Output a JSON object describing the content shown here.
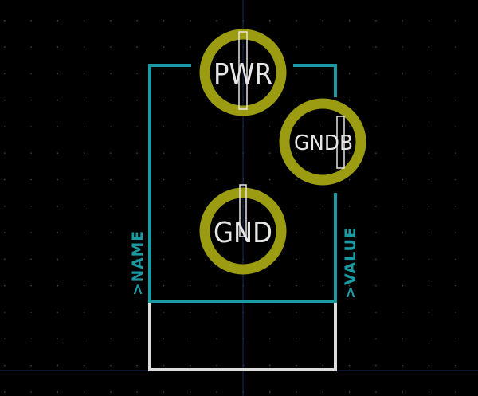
{
  "footprint": {
    "pads": [
      {
        "name": "PWR"
      },
      {
        "name": "GNDB"
      },
      {
        "name": "GND"
      }
    ],
    "name_field": ">NAME",
    "value_field": ">VALUE"
  },
  "colors": {
    "background": "#000000",
    "grid_dot": "#4a4a4a",
    "crosshair": "#1f2a5c",
    "silkscreen": "#1a9ba3",
    "pad_ring": "#9c9c12",
    "fab_outline": "#dcdcdc",
    "pad_label": "#e6e6e6"
  }
}
